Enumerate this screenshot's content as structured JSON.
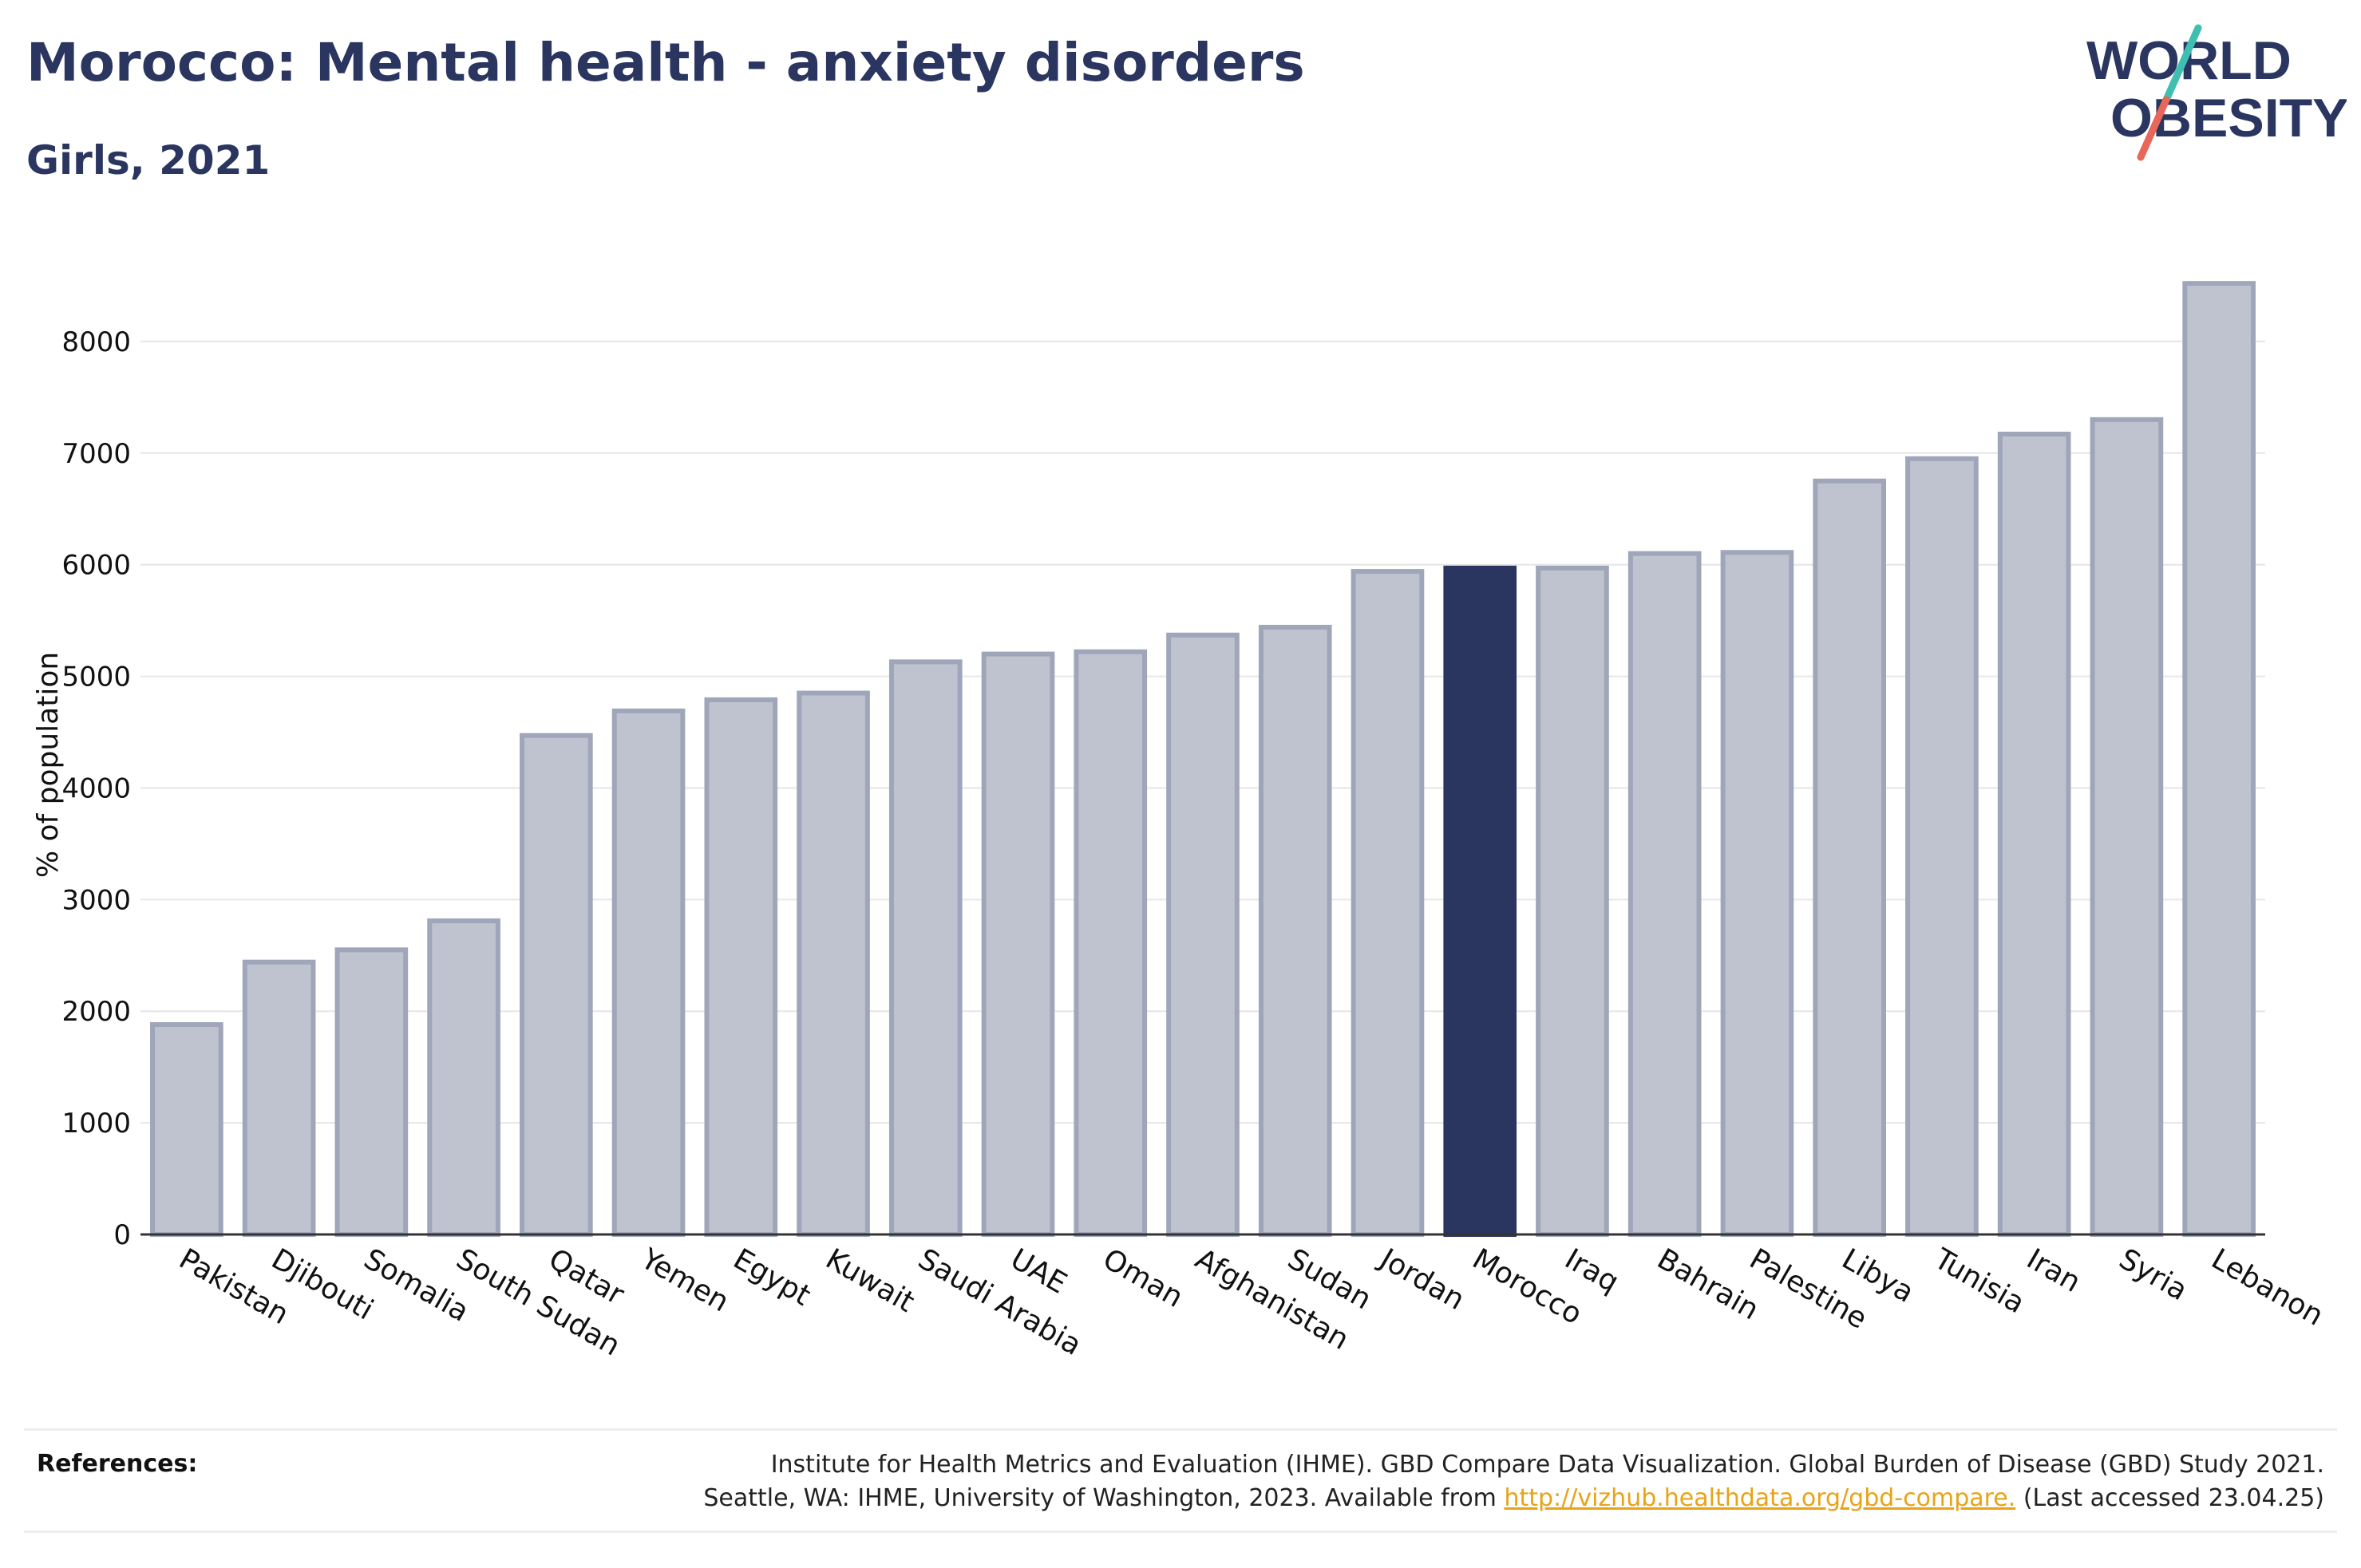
{
  "header": {
    "title": "Morocco: Mental health - anxiety disorders",
    "subtitle": "Girls, 2021"
  },
  "logo": {
    "line1": "WORLD",
    "line2": "OBESITY",
    "colors": {
      "text": "#2a3560",
      "slash_top": "#3fbfb2",
      "slash_bottom": "#e8675a"
    }
  },
  "chart_data": {
    "type": "bar",
    "title": "",
    "xlabel": "",
    "ylabel": "% of population",
    "ylim": [
      0,
      8700
    ],
    "yticks": [
      0,
      1000,
      2000,
      3000,
      4000,
      5000,
      6000,
      7000,
      8000
    ],
    "grid": true,
    "highlight": "Morocco",
    "colors": {
      "bar": "#bfc3cf",
      "bar_edge": "#a0a6ba",
      "highlight": "#2a3560",
      "grid": "#e6e6e6",
      "axis": "#333333"
    },
    "categories": [
      "Pakistan",
      "Djibouti",
      "Somalia",
      "South Sudan",
      "Qatar",
      "Yemen",
      "Egypt",
      "Kuwait",
      "Saudi Arabia",
      "UAE",
      "Oman",
      "Afghanistan",
      "Sudan",
      "Jordan",
      "Morocco",
      "Iraq",
      "Bahrain",
      "Palestine",
      "Libya",
      "Tunisia",
      "Iran",
      "Syria",
      "Lebanon"
    ],
    "values": [
      1880,
      2440,
      2550,
      2810,
      4470,
      4690,
      4790,
      4850,
      5130,
      5200,
      5220,
      5370,
      5440,
      5940,
      5970,
      5970,
      6100,
      6110,
      6750,
      6950,
      7170,
      7300,
      8520
    ]
  },
  "references": {
    "label": "References:",
    "line1": "Institute for Health Metrics and Evaluation (IHME). GBD Compare Data Visualization. Global Burden of Disease (GBD) Study 2021.",
    "line2_prefix": "Seattle, WA: IHME, University of Washington, 2023. Available from ",
    "link": "http://vizhub.healthdata.org/gbd-compare.",
    "line2_suffix": " (Last accessed 23.04.25)"
  }
}
